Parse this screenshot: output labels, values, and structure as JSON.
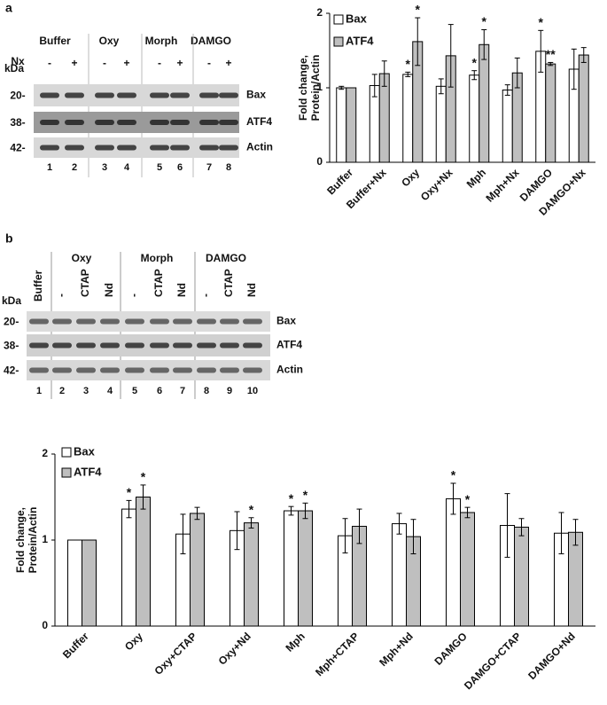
{
  "blot_a": {
    "panel": "a",
    "groups": [
      "Buffer",
      "Oxy",
      "Morph",
      "DAMGO"
    ],
    "treatment_label": "Nx",
    "treatments": [
      "-",
      "+",
      "-",
      "+",
      "-",
      "+",
      "-",
      "+"
    ],
    "kda_label": "kDa",
    "markers": [
      "20-",
      "38-",
      "42-"
    ],
    "proteins": [
      "Bax",
      "ATF4",
      "Actin"
    ],
    "lanes": [
      "1",
      "2",
      "3",
      "4",
      "5",
      "6",
      "7",
      "8"
    ]
  },
  "blot_b": {
    "panel": "b",
    "groups": [
      "Oxy",
      "Morph",
      "DAMGO"
    ],
    "lane_labels": [
      "Buffer",
      "-",
      "CTAP",
      "Nd",
      "-",
      "CTAP",
      "Nd",
      "-",
      "CTAP",
      "Nd"
    ],
    "kda_label": "kDa",
    "markers": [
      "20-",
      "38-",
      "42-"
    ],
    "proteins": [
      "Bax",
      "ATF4",
      "Actin"
    ],
    "lanes": [
      "1",
      "2",
      "3",
      "4",
      "5",
      "6",
      "7",
      "8",
      "9",
      "10"
    ]
  },
  "chart_data": [
    {
      "type": "bar",
      "ylabel": [
        "Fold change,",
        "Protein/Actin"
      ],
      "categories": [
        "Buffer",
        "Buffer+Nx",
        "Oxy",
        "Oxy+Nx",
        "Mph",
        "Mph+Nx",
        "DAMGO",
        "DAMGO+Nx"
      ],
      "series": [
        {
          "name": "Bax",
          "color": "#ffffff",
          "values": [
            1.0,
            1.03,
            1.18,
            1.02,
            1.17,
            0.97,
            1.49,
            1.25
          ],
          "errors": [
            0.02,
            0.15,
            0.03,
            0.1,
            0.06,
            0.07,
            0.28,
            0.27
          ],
          "stars": [
            null,
            null,
            "*",
            null,
            "*",
            null,
            "*",
            null
          ]
        },
        {
          "name": "ATF4",
          "color": "#bfbfbf",
          "values": [
            1.0,
            1.19,
            1.62,
            1.43,
            1.58,
            1.2,
            1.32,
            1.44
          ],
          "errors": [
            0,
            0.17,
            0.32,
            0.42,
            0.2,
            0.2,
            0.02,
            0.1
          ],
          "stars": [
            null,
            null,
            "*",
            null,
            "*",
            null,
            "**",
            null
          ]
        }
      ],
      "ylim": [
        0,
        2
      ],
      "yticks": [
        0,
        1,
        2
      ],
      "grid": false,
      "legend": "top-left"
    },
    {
      "type": "bar",
      "ylabel": [
        "Fold change,",
        "Protein/Actin"
      ],
      "categories": [
        "Buffer",
        "Oxy",
        "Oxy+CTAP",
        "Oxy+Nd",
        "Mph",
        "Mph+CTAP",
        "Mph+Nd",
        "DAMGO",
        "DAMGO+CTAP",
        "DAMGO+Nd"
      ],
      "series": [
        {
          "name": "Bax",
          "color": "#ffffff",
          "values": [
            1.0,
            1.36,
            1.07,
            1.11,
            1.34,
            1.05,
            1.19,
            1.48,
            1.17,
            1.08
          ],
          "errors": [
            0,
            0.1,
            0.23,
            0.22,
            0.05,
            0.2,
            0.12,
            0.18,
            0.37,
            0.24
          ],
          "stars": [
            null,
            "*",
            null,
            null,
            "*",
            null,
            null,
            "*",
            null,
            null
          ]
        },
        {
          "name": "ATF4",
          "color": "#bfbfbf",
          "values": [
            1.0,
            1.5,
            1.31,
            1.2,
            1.34,
            1.16,
            1.04,
            1.32,
            1.15,
            1.09
          ],
          "errors": [
            0,
            0.14,
            0.07,
            0.06,
            0.09,
            0.2,
            0.2,
            0.06,
            0.1,
            0.15
          ],
          "stars": [
            null,
            "*",
            null,
            "*",
            "*",
            null,
            null,
            "*",
            null,
            null
          ]
        }
      ],
      "ylim": [
        0,
        2
      ],
      "yticks": [
        0,
        1,
        2
      ],
      "grid": false,
      "legend": "top-left"
    }
  ]
}
